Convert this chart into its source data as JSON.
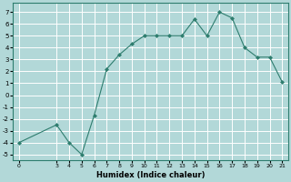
{
  "x": [
    0,
    3,
    4,
    5,
    6,
    7,
    8,
    9,
    10,
    11,
    12,
    13,
    14,
    15,
    16,
    17,
    18,
    19,
    20,
    21
  ],
  "y": [
    -4,
    -2.5,
    -4,
    -5,
    -1.7,
    2.2,
    3.4,
    4.3,
    5.0,
    5.0,
    5.0,
    5.0,
    6.4,
    5.0,
    7.0,
    6.5,
    4.0,
    3.2,
    3.2,
    1.1
  ],
  "xlabel": "Humidex (Indice chaleur)",
  "line_color": "#2e7d6e",
  "bg_color": "#b2d8d8",
  "grid_color": "#ffffff",
  "ylim": [
    -5.5,
    7.8
  ],
  "xlim": [
    -0.5,
    21.5
  ],
  "xticks": [
    0,
    3,
    4,
    5,
    6,
    7,
    8,
    9,
    10,
    11,
    12,
    13,
    14,
    15,
    16,
    17,
    18,
    19,
    20,
    21
  ],
  "yticks": [
    -5,
    -4,
    -3,
    -2,
    -1,
    0,
    1,
    2,
    3,
    4,
    5,
    6,
    7
  ]
}
